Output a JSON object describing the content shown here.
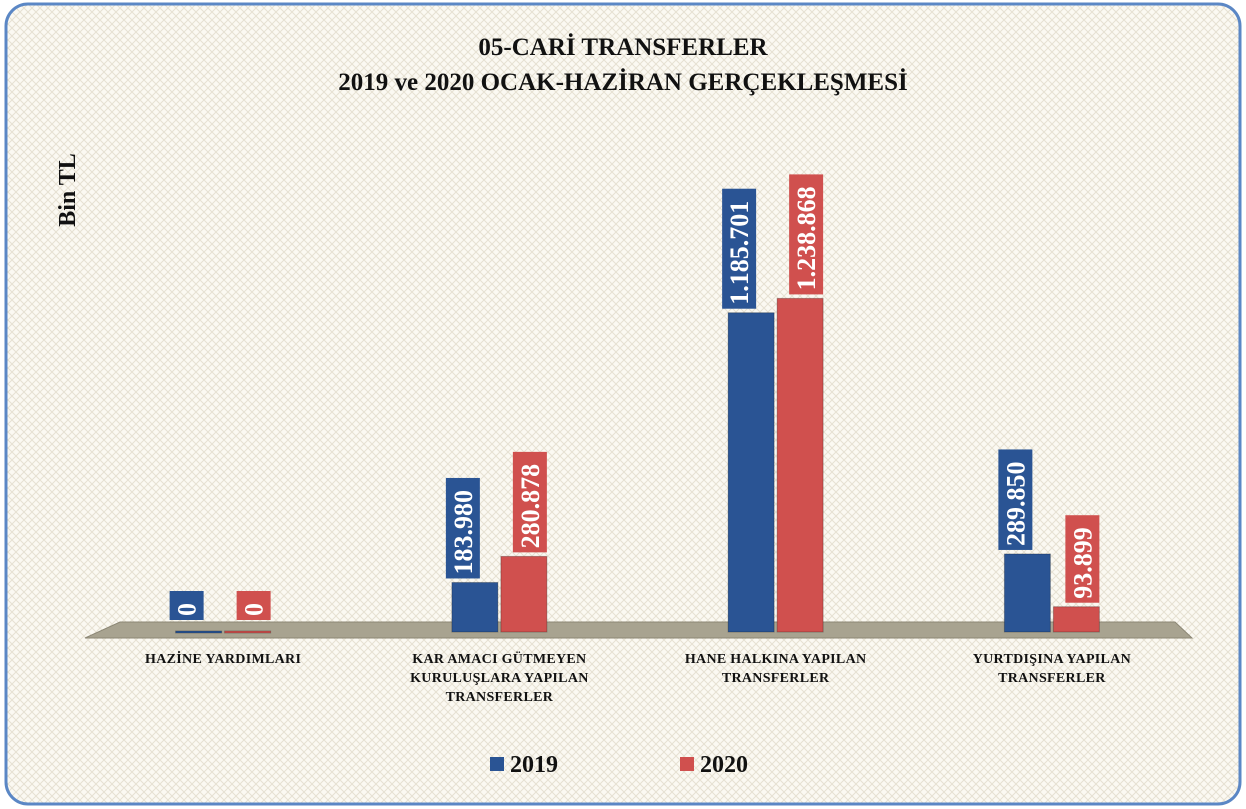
{
  "chart_data": {
    "type": "bar",
    "title": [
      "05-CARİ TRANSFERLER",
      "2019 ve 2020 OCAK-HAZİRAN GERÇEKLEŞMESİ"
    ],
    "y_label": "Bin TL",
    "categories": [
      "HAZİNE YARDIMLARI",
      "KAR AMACI GÜTMEYEN KURULUŞLARA YAPILAN TRANSFERLER",
      "HANE HALKINA YAPILAN TRANSFERLER",
      "YURTDIŞINA YAPILAN TRANSFERLER"
    ],
    "series": [
      {
        "name": "2019",
        "color": "#2a5494",
        "values": [
          0,
          183980,
          1185701,
          289850
        ],
        "value_labels": [
          "0",
          "183.980",
          "1.185.701",
          "289.850"
        ]
      },
      {
        "name": "2020",
        "color": "#d0504e",
        "values": [
          0,
          280878,
          1238868,
          93899
        ],
        "value_labels": [
          "0",
          "280.878",
          "1.238.868",
          "93.899"
        ]
      }
    ],
    "ylim": [
      0,
      1400000
    ],
    "legend": "bottom"
  }
}
